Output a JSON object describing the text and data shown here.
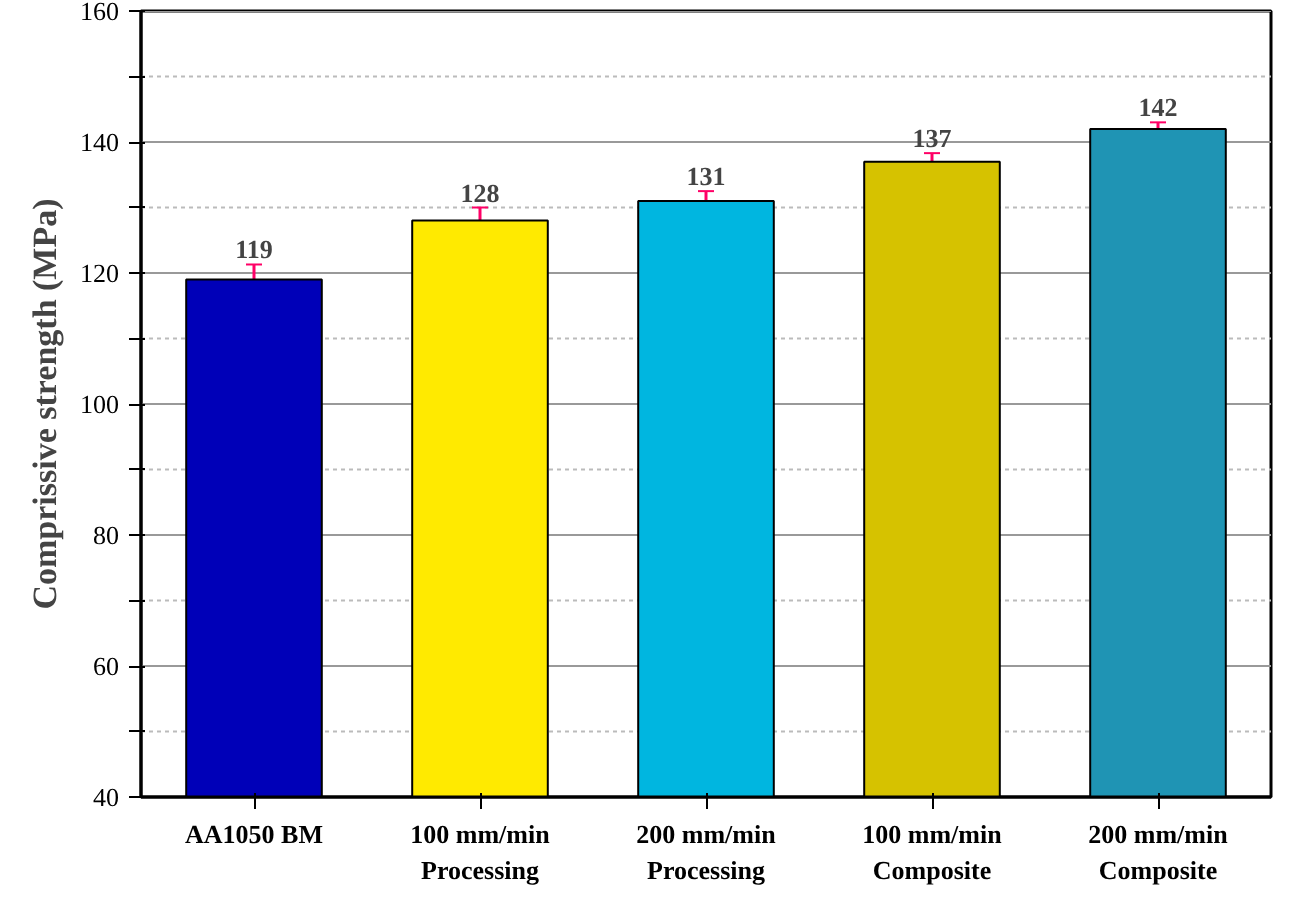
{
  "chart_data": {
    "type": "bar",
    "ylabel": "Comprissive strength (MPa)",
    "categories": [
      "AA1050 BM",
      "100 mm/min\nProcessing",
      "200 mm/min\nProcessing",
      "100 mm/min\nComposite",
      "200 mm/min\nComposite"
    ],
    "values": [
      119,
      128,
      131,
      137,
      142
    ],
    "colors": [
      "#0000b8",
      "#ffea00",
      "#00b6e0",
      "#d6c200",
      "#1f94b4"
    ],
    "errors": [
      2.3,
      2,
      1.5,
      1.3,
      1
    ],
    "data_labels": true,
    "ylim": [
      40,
      160
    ],
    "yticks": [
      40,
      {
        "value": 50,
        "label": null
      },
      60,
      {
        "value": 70,
        "label": null
      },
      80,
      {
        "value": 90,
        "label": null
      },
      100,
      {
        "value": 110,
        "label": null
      },
      120,
      {
        "value": 130,
        "label": null
      },
      140,
      {
        "value": 150,
        "label": null
      },
      160
    ],
    "grid": "y"
  }
}
